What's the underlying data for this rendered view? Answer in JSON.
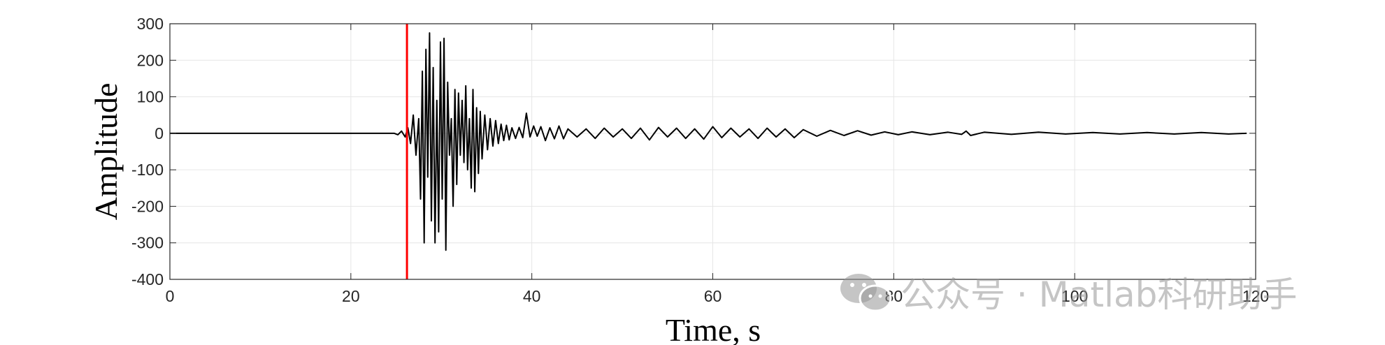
{
  "chart_data": {
    "type": "line",
    "title": "",
    "xlabel": "Time, s",
    "ylabel": "Amplitude",
    "xlim": [
      0,
      120
    ],
    "ylim": [
      -400,
      300
    ],
    "grid": true,
    "x_ticks": [
      0,
      20,
      40,
      60,
      80,
      100,
      120
    ],
    "y_ticks": [
      300,
      200,
      100,
      0,
      -100,
      -200,
      -300,
      -400
    ],
    "x_tick_labels": [
      "0",
      "20",
      "40",
      "60",
      "80",
      "100",
      "120"
    ],
    "y_tick_labels": [
      "300",
      "200",
      "100",
      "0",
      "-100",
      "-200",
      "-300",
      "-400"
    ],
    "series": [
      {
        "color": "#000000",
        "x": [
          0,
          24.8,
          25.2,
          25.6,
          26.0,
          26.3,
          26.6,
          26.9,
          27.2,
          27.5,
          27.7,
          27.9,
          28.1,
          28.3,
          28.5,
          28.7,
          28.9,
          29.1,
          29.3,
          29.5,
          29.7,
          29.9,
          30.1,
          30.3,
          30.5,
          30.7,
          30.9,
          31.1,
          31.3,
          31.5,
          31.7,
          31.9,
          32.1,
          32.3,
          32.5,
          32.7,
          32.9,
          33.1,
          33.3,
          33.5,
          33.7,
          33.9,
          34.1,
          34.3,
          34.5,
          34.8,
          35.1,
          35.4,
          35.7,
          36.0,
          36.3,
          36.6,
          36.9,
          37.2,
          37.5,
          37.8,
          38.2,
          38.6,
          39.0,
          39.4,
          39.8,
          40.2,
          40.6,
          41.0,
          41.5,
          42.0,
          42.5,
          43.0,
          43.5,
          44.0,
          45.0,
          46.0,
          47.0,
          48.0,
          49.0,
          50.0,
          51.0,
          52.0,
          53.0,
          54.0,
          55.0,
          56.0,
          57.0,
          58.0,
          59.0,
          60.0,
          61.0,
          62.0,
          63.0,
          64.0,
          65.0,
          66.0,
          67.0,
          68.0,
          69.0,
          70.0,
          71.5,
          73.0,
          74.5,
          76.0,
          77.5,
          79.0,
          80.5,
          82.0,
          84.0,
          86.0,
          87.5,
          88.0,
          88.5,
          90.0,
          93.0,
          96.0,
          99.0,
          102.0,
          105.0,
          108.0,
          111.0,
          114.0,
          117.0,
          119.0
        ],
        "y": [
          0,
          0,
          -4,
          6,
          -10,
          15,
          -28,
          50,
          -60,
          40,
          -180,
          170,
          -300,
          230,
          -120,
          275,
          -240,
          180,
          -300,
          90,
          -270,
          250,
          -180,
          260,
          -320,
          140,
          -60,
          40,
          -200,
          120,
          -140,
          110,
          -60,
          90,
          -80,
          130,
          -100,
          40,
          -150,
          120,
          -160,
          70,
          -110,
          60,
          -70,
          50,
          -45,
          40,
          -35,
          35,
          -28,
          25,
          -20,
          22,
          -18,
          15,
          -14,
          16,
          -12,
          55,
          -10,
          20,
          -8,
          18,
          -20,
          15,
          -15,
          20,
          -15,
          12,
          -10,
          12,
          -14,
          14,
          -10,
          12,
          -14,
          14,
          -18,
          16,
          -10,
          14,
          -14,
          12,
          -16,
          18,
          -12,
          14,
          -10,
          12,
          -14,
          14,
          -10,
          12,
          -12,
          10,
          -8,
          8,
          -6,
          7,
          -5,
          4,
          -4,
          4,
          -4,
          3,
          -3,
          6,
          -6,
          3,
          -3,
          3,
          -2,
          2,
          -2,
          2,
          -2,
          2,
          -2,
          0
        ]
      },
      {
        "color": "#ff0000",
        "x": [
          26.2,
          26.2
        ],
        "y": [
          -400,
          300
        ]
      }
    ]
  },
  "watermark": {
    "text": "公众号 · Matlab科研助手",
    "icon": "wechat-icon"
  }
}
